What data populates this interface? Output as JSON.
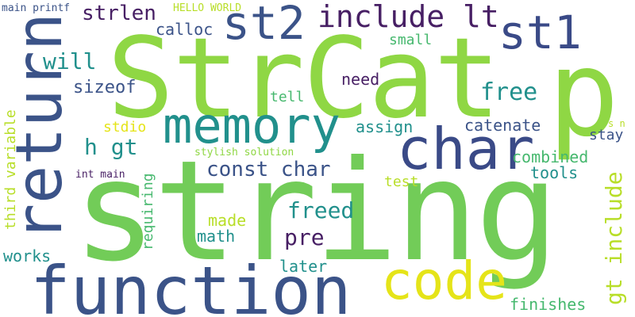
{
  "palette": {
    "background": "#ffffff",
    "navy": "#3b5388",
    "indigo": "#3a4a87",
    "purple": "#471f64",
    "teal": "#21908c",
    "green": "#46b86e",
    "lime": "#72cc58",
    "bright_green": "#8fd744",
    "yellow_green": "#b8de29",
    "yellow": "#e5e419"
  },
  "words": {
    "string": "string",
    "strcat": "StrCat",
    "p": "p",
    "function": "function",
    "return": "return",
    "char": "char",
    "memory": "memory",
    "code": "code",
    "st2": "st2",
    "st1": "st1",
    "include_lt": "include lt",
    "strlen": "strlen",
    "const_char": "const char",
    "gt_include": "gt include",
    "third_variable": "third variable",
    "freed": "freed",
    "free": "free",
    "h_gt": "h gt",
    "will": "will",
    "pre": "pre",
    "sizeof": "sizeof",
    "catenate": "catenate",
    "combined": "combined",
    "calloc": "calloc",
    "need": "need",
    "assign": "assign",
    "tools": "tools",
    "requiring": "requiring",
    "math": "math",
    "made": "made",
    "works": "works",
    "later": "later",
    "finishes": "finishes",
    "tell": "tell",
    "small": "small",
    "stdio": "stdio",
    "stay": "stay",
    "test": "test",
    "main_printf": "main printf",
    "hello_world": "HELLO WORLD",
    "stylish_solution": "stylish solution",
    "int_main": "int main",
    "s_n": "s n"
  }
}
